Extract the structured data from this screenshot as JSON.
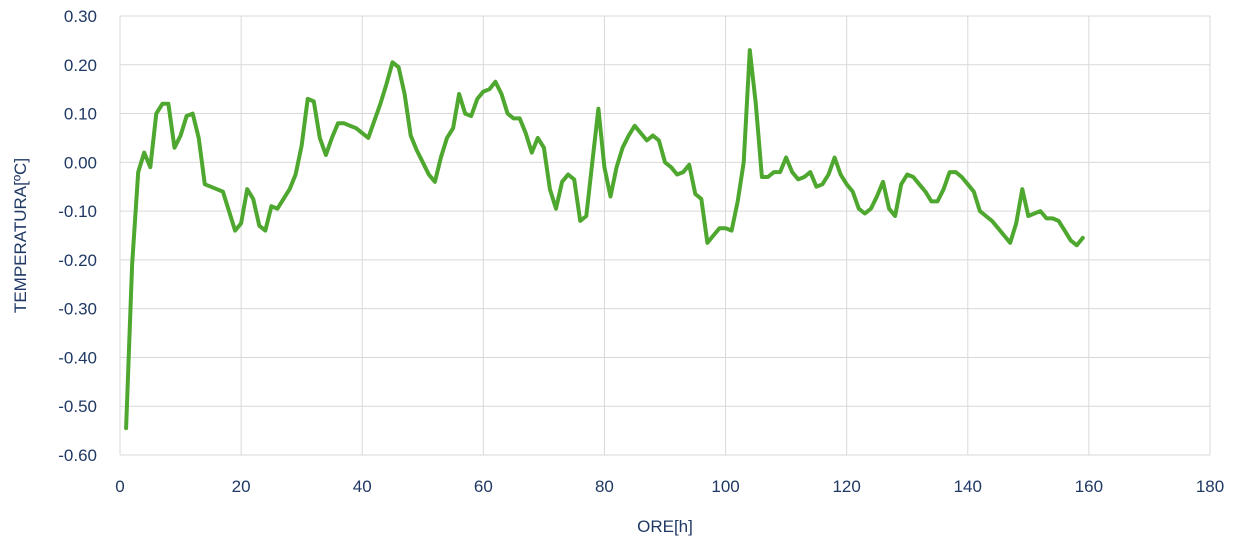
{
  "chart_data": {
    "type": "line",
    "title": "",
    "xlabel": "ORE[h]",
    "ylabel": "TEMPERATURA[ºC]",
    "xlim": [
      0,
      180
    ],
    "ylim": [
      -0.6,
      0.3
    ],
    "x_ticks": [
      0,
      20,
      40,
      60,
      80,
      100,
      120,
      140,
      160,
      180
    ],
    "y_ticks": [
      0.3,
      0.2,
      0.1,
      0.0,
      -0.1,
      -0.2,
      -0.3,
      -0.4,
      -0.5,
      -0.6
    ],
    "x_tick_labels": [
      "0",
      "20",
      "40",
      "60",
      "80",
      "100",
      "120",
      "140",
      "160",
      "180"
    ],
    "y_tick_labels": [
      "0.30",
      "0.20",
      "0.10",
      "0.00",
      "-0.10",
      "-0.20",
      "-0.30",
      "-0.40",
      "-0.50",
      "-0.60"
    ],
    "grid": true,
    "series": [
      {
        "color": "#4ea72e",
        "x": [
          1,
          2,
          3,
          4,
          5,
          6,
          7,
          8,
          9,
          10,
          11,
          12,
          13,
          14,
          15,
          16,
          17,
          18,
          19,
          20,
          21,
          22,
          23,
          24,
          25,
          26,
          27,
          28,
          29,
          30,
          31,
          32,
          33,
          34,
          35,
          36,
          37,
          38,
          39,
          40,
          41,
          42,
          43,
          44,
          45,
          46,
          47,
          48,
          49,
          50,
          51,
          52,
          53,
          54,
          55,
          56,
          57,
          58,
          59,
          60,
          61,
          62,
          63,
          64,
          65,
          66,
          67,
          68,
          69,
          70,
          71,
          72,
          73,
          74,
          75,
          76,
          77,
          78,
          79,
          80,
          81,
          82,
          83,
          84,
          85,
          86,
          87,
          88,
          89,
          90,
          91,
          92,
          93,
          94,
          95,
          96,
          97,
          98,
          99,
          100,
          101,
          102,
          103,
          104,
          105,
          106,
          107,
          108,
          109,
          110,
          111,
          112,
          113,
          114,
          115,
          116,
          117,
          118,
          119,
          120,
          121,
          122,
          123,
          124,
          125,
          126,
          127,
          128,
          129,
          130,
          131,
          132,
          133,
          134,
          135,
          136,
          137,
          138,
          139,
          140,
          141,
          142,
          143,
          144,
          145,
          146,
          147,
          148,
          149,
          150,
          151,
          152,
          153,
          154,
          155,
          156,
          157,
          158,
          159
        ],
        "y": [
          -0.545,
          -0.21,
          -0.02,
          0.02,
          -0.01,
          0.1,
          0.12,
          0.12,
          0.03,
          0.055,
          0.095,
          0.1,
          0.05,
          -0.045,
          -0.05,
          -0.055,
          -0.06,
          -0.1,
          -0.14,
          -0.125,
          -0.055,
          -0.075,
          -0.13,
          -0.14,
          -0.09,
          -0.095,
          -0.075,
          -0.055,
          -0.025,
          0.035,
          0.13,
          0.125,
          0.05,
          0.015,
          0.05,
          0.08,
          0.08,
          0.075,
          0.07,
          0.06,
          0.05,
          0.085,
          0.12,
          0.16,
          0.205,
          0.195,
          0.14,
          0.055,
          0.025,
          0.0,
          -0.025,
          -0.04,
          0.01,
          0.05,
          0.07,
          0.14,
          0.1,
          0.095,
          0.13,
          0.145,
          0.15,
          0.165,
          0.14,
          0.1,
          0.09,
          0.09,
          0.06,
          0.02,
          0.05,
          0.03,
          -0.055,
          -0.095,
          -0.04,
          -0.025,
          -0.035,
          -0.12,
          -0.11,
          0.0,
          0.11,
          -0.01,
          -0.07,
          -0.01,
          0.03,
          0.055,
          0.075,
          0.06,
          0.045,
          0.055,
          0.045,
          0.0,
          -0.01,
          -0.025,
          -0.02,
          -0.005,
          -0.065,
          -0.075,
          -0.165,
          -0.15,
          -0.135,
          -0.135,
          -0.14,
          -0.08,
          0.0,
          0.23,
          0.12,
          -0.03,
          -0.03,
          -0.02,
          -0.02,
          0.01,
          -0.02,
          -0.035,
          -0.03,
          -0.02,
          -0.05,
          -0.045,
          -0.025,
          0.01,
          -0.025,
          -0.045,
          -0.06,
          -0.095,
          -0.105,
          -0.095,
          -0.07,
          -0.04,
          -0.095,
          -0.11,
          -0.045,
          -0.025,
          -0.03,
          -0.045,
          -0.06,
          -0.08,
          -0.08,
          -0.055,
          -0.02,
          -0.02,
          -0.03,
          -0.045,
          -0.06,
          -0.1,
          -0.11,
          -0.12,
          -0.135,
          -0.15,
          -0.165,
          -0.125,
          -0.055,
          -0.11,
          -0.105,
          -0.1,
          -0.115,
          -0.115,
          -0.12,
          -0.14,
          -0.16,
          -0.17,
          -0.155
        ]
      }
    ]
  }
}
